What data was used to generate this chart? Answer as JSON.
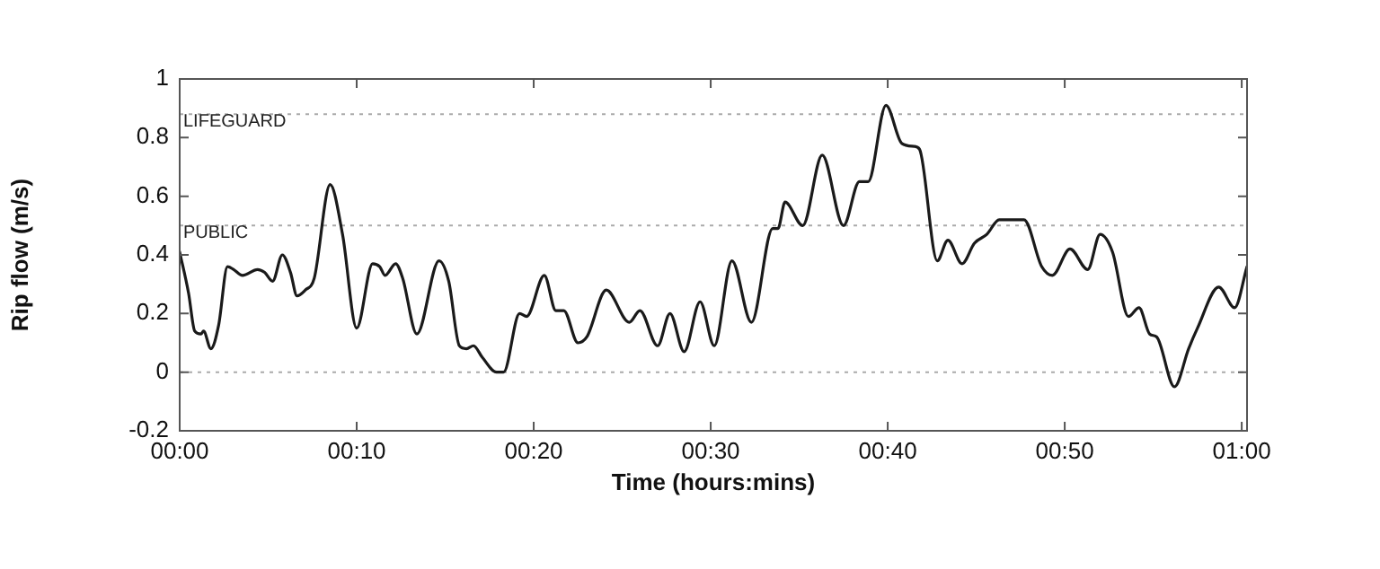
{
  "chart_data": {
    "type": "line",
    "xlabel": "Time (hours:mins)",
    "ylabel": "Rip flow (m/s)",
    "grid": false,
    "legend": false,
    "marker": "none",
    "line_style": "solid",
    "xlim": [
      0,
      60.3
    ],
    "ylim": [
      -0.2,
      1
    ],
    "xticks": [
      {
        "value": 0,
        "label": "00:00"
      },
      {
        "value": 10,
        "label": "00:10"
      },
      {
        "value": 20,
        "label": "00:20"
      },
      {
        "value": 30,
        "label": "00:30"
      },
      {
        "value": 40,
        "label": "00:40"
      },
      {
        "value": 50,
        "label": "00:50"
      },
      {
        "value": 60,
        "label": "01:00"
      }
    ],
    "yticks": [
      -0.2,
      0,
      0.2,
      0.4,
      0.6,
      0.8,
      1
    ],
    "ref_lines": [
      {
        "axis": "y",
        "value": 0.88,
        "label": "LIFEGUARD"
      },
      {
        "axis": "y",
        "value": 0.5,
        "label": "PUBLIC"
      },
      {
        "axis": "y",
        "value": 0
      }
    ],
    "series": [
      {
        "color": "#1a1a1a",
        "x": [
          0,
          0.5,
          0.85,
          1.2,
          1.35,
          1.76,
          2.2,
          2.7,
          3.05,
          3.55,
          4.4,
          4.8,
          5.25,
          5.8,
          6.26,
          6.63,
          7.1,
          7.6,
          8.5,
          9.2,
          10.0,
          10.9,
          11.3,
          11.6,
          12.2,
          12.6,
          13.4,
          14.65,
          15.2,
          15.8,
          16.2,
          16.6,
          17.1,
          17.9,
          18.3,
          19.2,
          19.6,
          20.6,
          21.25,
          21.7,
          22.5,
          23.0,
          24.1,
          25.4,
          26.0,
          27.0,
          27.7,
          28.5,
          29.4,
          30.2,
          31.2,
          32.3,
          33.5,
          33.8,
          34.2,
          35.2,
          36.3,
          37.5,
          38.4,
          38.9,
          39.9,
          40.8,
          41.5,
          41.8,
          42.8,
          43.4,
          44.2,
          44.9,
          45.6,
          46.3,
          47.7,
          48.7,
          49.3,
          50.3,
          51.3,
          52.0,
          52.7,
          53.6,
          54.2,
          54.8,
          55.2,
          56.2,
          57.0,
          57.5,
          58.7,
          59.6,
          60.3
        ],
        "values": [
          0.41,
          0.27,
          0.14,
          0.13,
          0.14,
          0.08,
          0.16,
          0.36,
          0.35,
          0.33,
          0.35,
          0.34,
          0.31,
          0.4,
          0.34,
          0.26,
          0.28,
          0.32,
          0.64,
          0.47,
          0.15,
          0.37,
          0.36,
          0.33,
          0.37,
          0.32,
          0.13,
          0.38,
          0.31,
          0.09,
          0.08,
          0.09,
          0.05,
          0.0,
          0.0,
          0.2,
          0.19,
          0.33,
          0.21,
          0.21,
          0.1,
          0.12,
          0.28,
          0.17,
          0.21,
          0.09,
          0.2,
          0.07,
          0.24,
          0.09,
          0.38,
          0.17,
          0.49,
          0.49,
          0.58,
          0.5,
          0.74,
          0.5,
          0.65,
          0.65,
          0.91,
          0.78,
          0.77,
          0.76,
          0.38,
          0.45,
          0.37,
          0.44,
          0.47,
          0.52,
          0.52,
          0.36,
          0.33,
          0.42,
          0.35,
          0.47,
          0.41,
          0.19,
          0.22,
          0.13,
          0.12,
          -0.05,
          0.08,
          0.15,
          0.29,
          0.22,
          0.36
        ]
      }
    ]
  }
}
